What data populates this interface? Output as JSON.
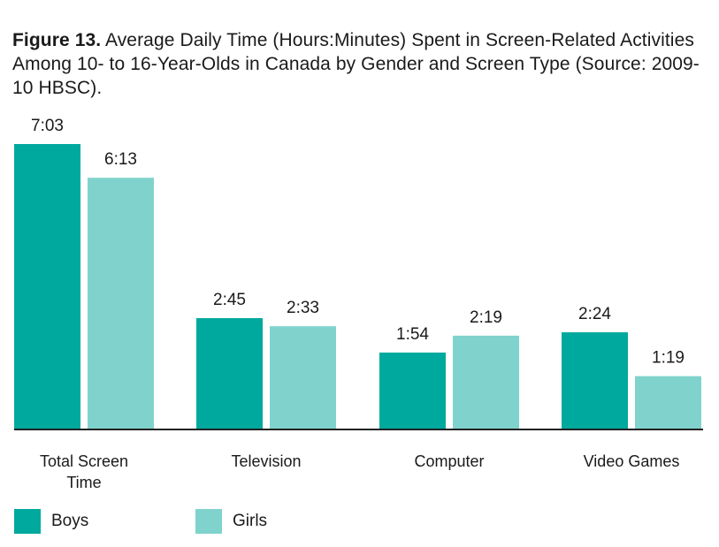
{
  "title": {
    "prefix": "Figure 13.",
    "text": "Average Daily Time (Hours:Minutes) Spent in Screen-Related Activities Among 10- to 16-Year-Olds in Canada by Gender and Screen Type (Source: 2009-10 HBSC)."
  },
  "colors": {
    "boys": "#00a99d",
    "girls": "#7fd3cc",
    "axis": "#222222"
  },
  "chart_data": {
    "type": "bar",
    "categories": [
      "Total Screen Time",
      "Television",
      "Computer",
      "Video Games"
    ],
    "category_lines": [
      [
        "Total Screen",
        "Time"
      ],
      [
        "Television"
      ],
      [
        "Computer"
      ],
      [
        "Video Games"
      ]
    ],
    "series": [
      {
        "name": "Boys",
        "values": [
          7.05,
          2.75,
          1.9,
          2.4
        ],
        "labels": [
          "7:03",
          "2:45",
          "1:54",
          "2:24"
        ]
      },
      {
        "name": "Girls",
        "values": [
          6.2167,
          2.55,
          2.3167,
          1.3167
        ],
        "labels": [
          "6:13",
          "2:33",
          "2:19",
          "1:19"
        ]
      }
    ],
    "ylabel": "",
    "xlabel": "",
    "grid": false,
    "legend": "bottom-left"
  }
}
